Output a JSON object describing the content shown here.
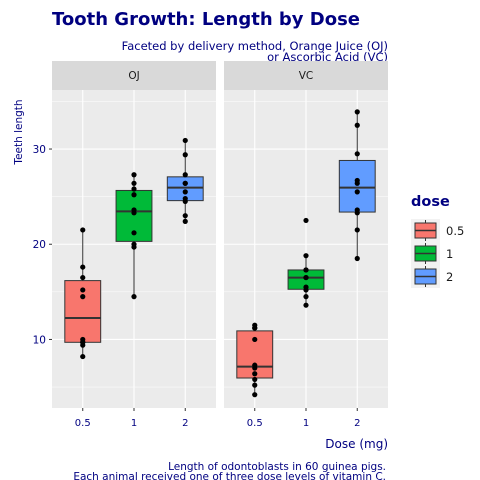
{
  "chart_data": {
    "type": "boxplot",
    "title": "Tooth Growth:  Length by Dose",
    "subtitle_lines": [
      "Faceted by delivery method, Orange Juice (OJ)",
      "or Ascorbic Acid (VC)"
    ],
    "caption_lines": [
      "Length of odontoblasts in 60 guinea pigs.",
      "Each animal received one of three dose levels of vitamin C."
    ],
    "xlabel": "Dose (mg)",
    "ylabel": "Teeth length",
    "ylim": [
      2.8,
      36.2
    ],
    "yticks": [
      10,
      20,
      30
    ],
    "categories": [
      "0.5",
      "1",
      "2"
    ],
    "legend": {
      "title": "dose",
      "position": "right",
      "entries": [
        {
          "label": "0.5",
          "color": "#F8766D"
        },
        {
          "label": "1",
          "color": "#00BA38"
        },
        {
          "label": "2",
          "color": "#619CFF"
        }
      ]
    },
    "panel_background": "#EBEBEB",
    "strip_background": "#D9D9D9",
    "facets": [
      {
        "label": "OJ",
        "groups": [
          {
            "dose": "0.5",
            "q1": 9.7,
            "median": 12.25,
            "q3": 16.18,
            "whisker_low": 8.2,
            "whisker_high": 21.5,
            "points": [
              15.2,
              21.5,
              17.6,
              9.7,
              14.5,
              10.0,
              8.2,
              9.4,
              16.5,
              9.7
            ]
          },
          {
            "dose": "1",
            "q1": 20.3,
            "median": 23.45,
            "q3": 25.65,
            "whisker_low": 14.5,
            "whisker_high": 27.3,
            "points": [
              19.7,
              23.3,
              23.6,
              26.4,
              20.0,
              25.2,
              25.8,
              21.2,
              14.5,
              27.3
            ]
          },
          {
            "dose": "2",
            "q1": 24.58,
            "median": 25.95,
            "q3": 27.08,
            "whisker_low": 22.4,
            "whisker_high": 30.9,
            "points": [
              25.5,
              26.4,
              22.4,
              24.5,
              24.8,
              30.9,
              26.4,
              27.3,
              29.4,
              23.0
            ]
          }
        ]
      },
      {
        "label": "VC",
        "groups": [
          {
            "dose": "0.5",
            "q1": 5.95,
            "median": 7.15,
            "q3": 10.9,
            "whisker_low": 4.2,
            "whisker_high": 11.5,
            "points": [
              4.2,
              11.5,
              7.3,
              5.8,
              6.4,
              10.0,
              11.2,
              11.2,
              5.2,
              7.0
            ]
          },
          {
            "dose": "1",
            "q1": 15.27,
            "median": 16.5,
            "q3": 17.3,
            "whisker_low": 13.6,
            "whisker_high": 18.8,
            "points": [
              16.5,
              16.5,
              15.2,
              17.3,
              22.5,
              17.3,
              13.6,
              14.5,
              18.8,
              15.5
            ]
          },
          {
            "dose": "2",
            "q1": 23.38,
            "median": 25.95,
            "q3": 28.8,
            "whisker_low": 18.5,
            "whisker_high": 33.9,
            "points": [
              23.6,
              18.5,
              33.9,
              25.5,
              26.4,
              32.5,
              26.7,
              21.5,
              23.3,
              29.5
            ]
          }
        ]
      }
    ]
  }
}
